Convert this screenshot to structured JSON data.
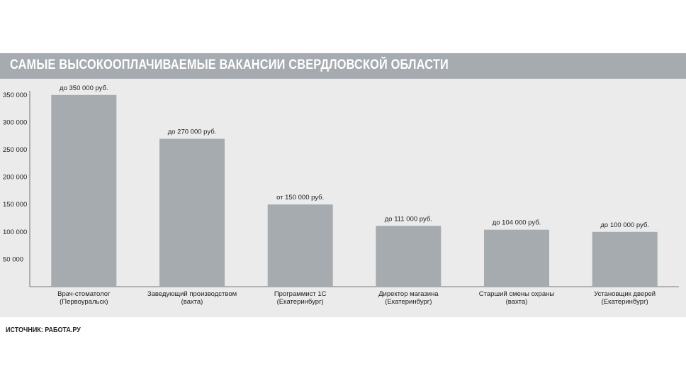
{
  "title": "САМЫЕ ВЫСОКООПЛАЧИВАЕМЫЕ ВАКАНСИИ СВЕРДЛОВСКОЙ ОБЛАСТИ",
  "source": "ИСТОЧНИК: РАБОТА.РУ",
  "colors": {
    "bar": "#a6abb0",
    "plot_background": "#ebebeb",
    "title_bar": "#a6abb0"
  },
  "chart_data": {
    "type": "bar",
    "title": "САМЫЕ ВЫСОКООПЛАЧИВАЕМЫЕ ВАКАНСИИ СВЕРДЛОВСКОЙ ОБЛАСТИ",
    "xlabel": "",
    "ylabel": "",
    "ylim": [
      0,
      370000
    ],
    "yticks": [
      50000,
      100000,
      150000,
      200000,
      250000,
      300000,
      350000
    ],
    "ytick_labels": [
      "50 000",
      "100 000",
      "150 000",
      "200 000",
      "250 000",
      "300 000",
      "350 000"
    ],
    "grid": false,
    "categories": [
      [
        "Врач-стоматолог",
        "(Первоуральск)"
      ],
      [
        "Заведующий производством",
        "(вахта)"
      ],
      [
        "Программист 1С",
        "(Екатеринбург)"
      ],
      [
        "Директор магазина",
        "(Екатеринбург)"
      ],
      [
        "Старший смены охраны",
        "(вахта)"
      ],
      [
        "Установщик дверей",
        "(Екатеринбург)"
      ]
    ],
    "values": [
      350000,
      270000,
      150000,
      111000,
      104000,
      100000
    ],
    "data_labels": [
      "до 350 000 руб.",
      "до 270 000 руб.",
      "от 150 000 руб.",
      "до 111 000 руб.",
      "до 104 000 руб.",
      "до 100 000 руб."
    ]
  }
}
